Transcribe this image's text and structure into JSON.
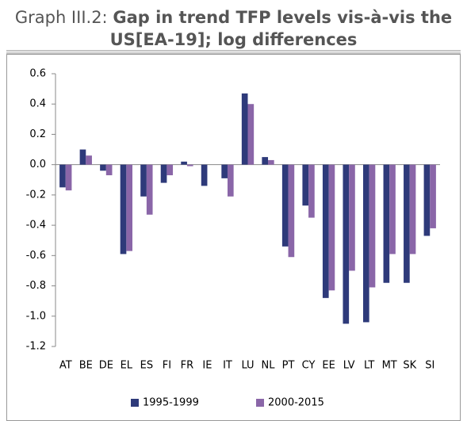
{
  "chart_data": {
    "type": "bar",
    "title_label": "Graph III.2:",
    "title": "Gap in trend TFP levels vis-à-vis the US[EA-19]; log differences",
    "categories": [
      "AT",
      "BE",
      "DE",
      "EL",
      "ES",
      "FI",
      "FR",
      "IE",
      "IT",
      "LU",
      "NL",
      "PT",
      "CY",
      "EE",
      "LV",
      "LT",
      "MT",
      "SK",
      "SI"
    ],
    "series": [
      {
        "name": "1995-1999",
        "color": "#2e3a7a",
        "values": [
          -0.15,
          0.1,
          -0.04,
          -0.59,
          -0.21,
          -0.12,
          0.02,
          -0.14,
          -0.09,
          0.47,
          0.05,
          -0.54,
          -0.27,
          -0.88,
          -1.05,
          -1.04,
          -0.78,
          -0.78,
          -0.47
        ]
      },
      {
        "name": "2000-2015",
        "color": "#8a66a8",
        "values": [
          -0.17,
          0.06,
          -0.07,
          -0.57,
          -0.33,
          -0.07,
          -0.01,
          0,
          -0.21,
          0.4,
          0.03,
          -0.61,
          -0.35,
          -0.83,
          -0.7,
          -0.81,
          -0.59,
          -0.59,
          -0.42
        ]
      }
    ],
    "ylim": [
      -1.2,
      0.6
    ],
    "yticks": [
      0.6,
      0.4,
      0.2,
      {
        "value": 0,
        "label": "0.0"
      },
      -0.2,
      -0.4,
      -0.6,
      -0.8,
      {
        "value": -1,
        "label": "-1.0"
      },
      -1.2
    ],
    "legend": "bottom"
  }
}
